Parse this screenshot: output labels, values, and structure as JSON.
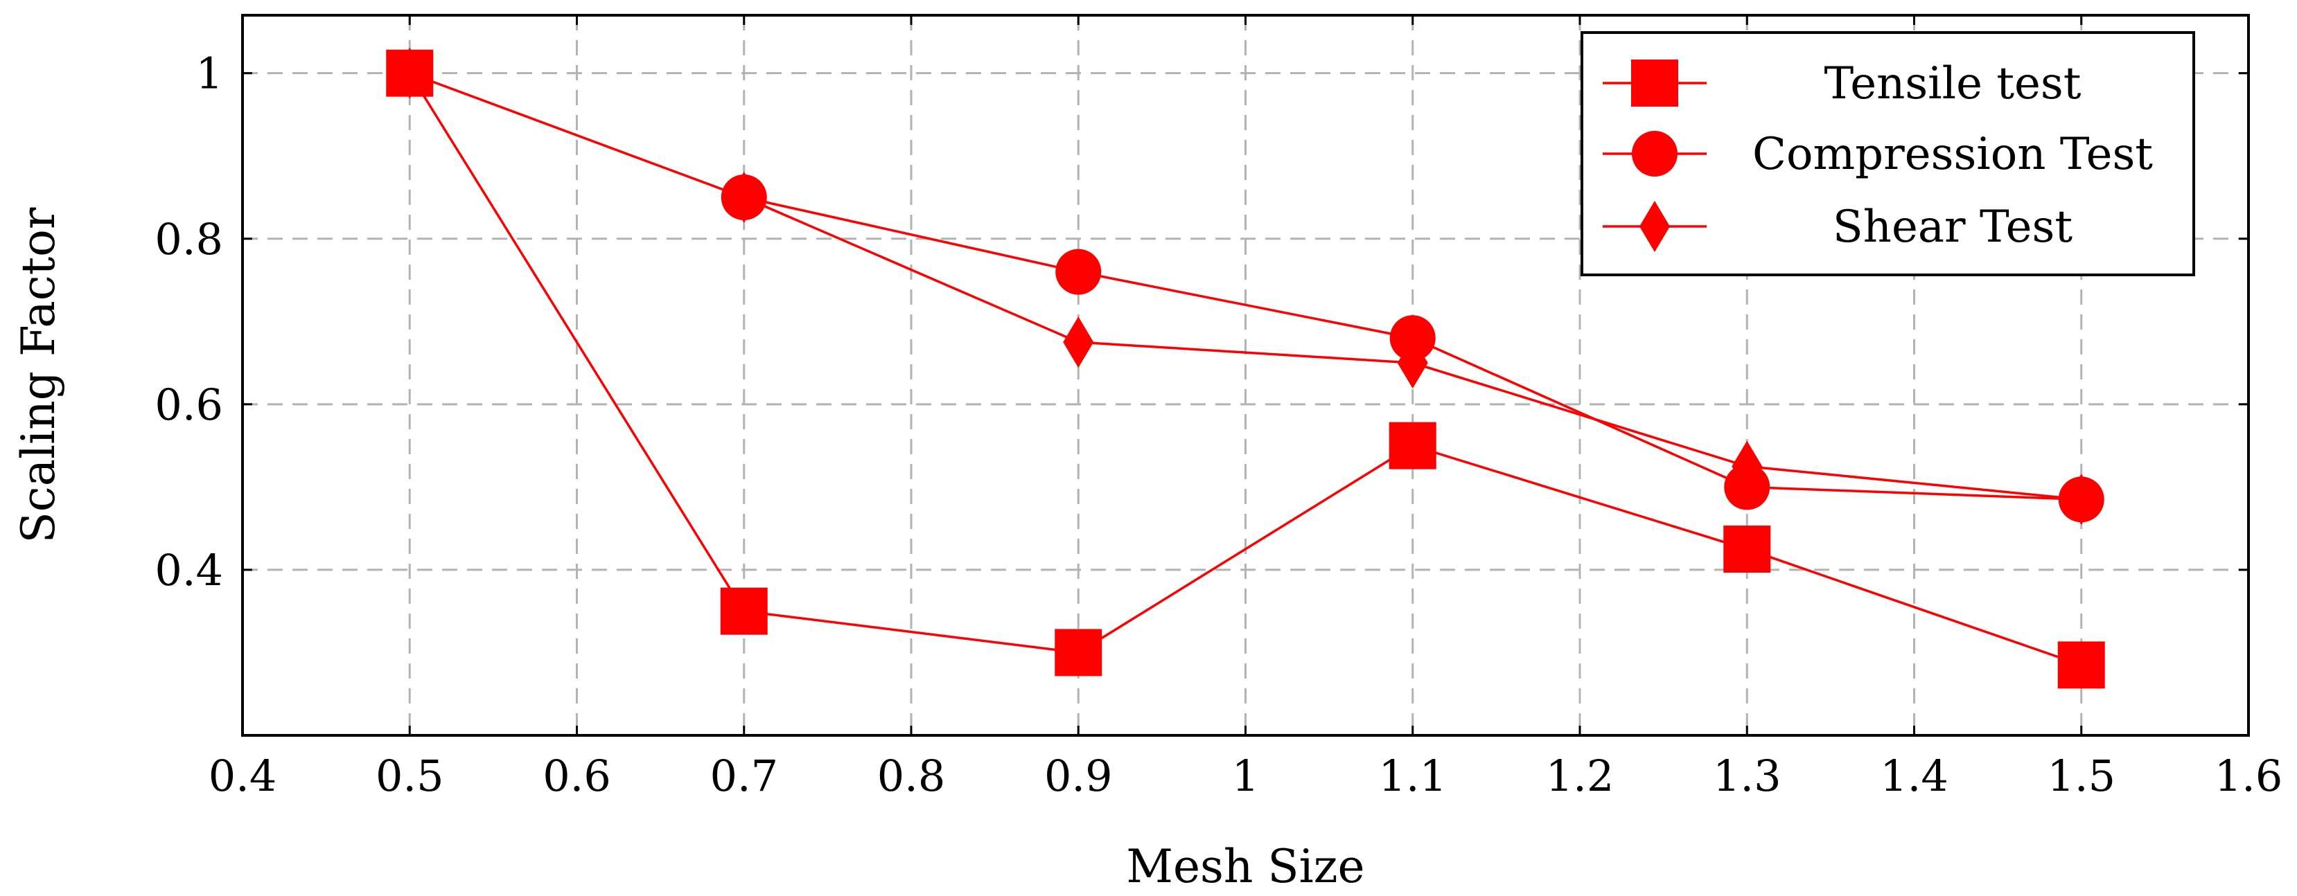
{
  "chart_data": {
    "type": "line",
    "xlabel": "Mesh Size",
    "ylabel": "Scaling Factor",
    "xlim": [
      0.4,
      1.6
    ],
    "ylim": [
      0.2,
      1.07
    ],
    "xticks": [
      0.4,
      0.5,
      0.6,
      0.7,
      0.8,
      0.9,
      1.0,
      1.1,
      1.2,
      1.3,
      1.4,
      1.5,
      1.6
    ],
    "xtick_labels": [
      "0.4",
      "0.5",
      "0.6",
      "0.7",
      "0.8",
      "0.9",
      "1",
      "1.1",
      "1.2",
      "1.3",
      "1.4",
      "1.5",
      "1.6"
    ],
    "yticks": [
      0.4,
      0.6,
      0.8,
      1.0
    ],
    "ytick_labels": [
      "0.4",
      "0.6",
      "0.8",
      "1"
    ],
    "grid": true,
    "legend_position": "top-right",
    "series": [
      {
        "name": "Tensile test",
        "marker": "square",
        "color": "#ff0000",
        "x": [
          0.5,
          0.7,
          0.9,
          1.1,
          1.3,
          1.5
        ],
        "y": [
          1.0,
          0.35,
          0.3,
          0.55,
          0.425,
          0.285
        ]
      },
      {
        "name": "Compression Test",
        "marker": "circle",
        "color": "#ff0000",
        "x": [
          0.7,
          0.9,
          1.1,
          1.3,
          1.5
        ],
        "y": [
          0.85,
          0.76,
          0.68,
          0.5,
          0.485
        ]
      },
      {
        "name": "Shear Test",
        "marker": "diamond",
        "color": "#ff0000",
        "x": [
          0.5,
          0.7,
          0.9,
          1.1,
          1.3,
          1.5
        ],
        "y": [
          1.0,
          0.85,
          0.675,
          0.65,
          0.525,
          0.485
        ]
      }
    ]
  }
}
